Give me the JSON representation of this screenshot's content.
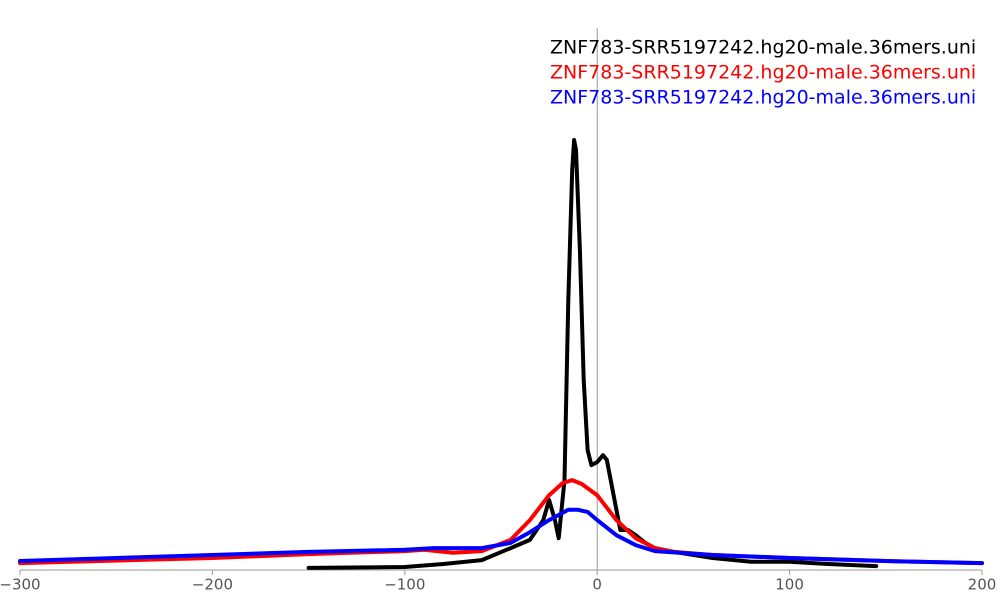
{
  "chart_data": {
    "type": "line",
    "xlim": [
      -300,
      200
    ],
    "ylim": [
      0,
      100
    ],
    "xticks": [
      {
        "value": -300,
        "label": "−300"
      },
      {
        "value": -200,
        "label": "−200"
      },
      {
        "value": -100,
        "label": "−100"
      },
      0,
      100,
      200
    ],
    "series": [
      {
        "name": "ZNF783-SRR5197242.hg20-male.36mers.uni",
        "color": "#000000",
        "x": [
          -150,
          -100,
          -80,
          -60,
          -45,
          -35,
          -28,
          -25,
          -22,
          -20,
          -17,
          -15,
          -13,
          -12,
          -11,
          -9,
          -7,
          -5,
          -3,
          0,
          3,
          5,
          8,
          12,
          16,
          20,
          25,
          30,
          40,
          60,
          80,
          100,
          120,
          145
        ],
        "values": [
          0.5,
          0.7,
          1.4,
          2.3,
          5.1,
          7.0,
          11.6,
          16.3,
          11.6,
          7.4,
          20.9,
          62.8,
          93.0,
          100,
          97.7,
          74.4,
          44.2,
          27.9,
          24.4,
          25.1,
          26.7,
          25.6,
          18.6,
          9.3,
          9.3,
          8.1,
          6.3,
          5.1,
          4.2,
          2.8,
          1.9,
          1.9,
          1.4,
          0.9
        ]
      },
      {
        "name": "ZNF783-SRR5197242.hg20-male.36mers.uni",
        "color": "#ff0000",
        "x": [
          -300,
          -200,
          -150,
          -100,
          -90,
          -75,
          -60,
          -45,
          -35,
          -25,
          -18,
          -13,
          -8,
          0,
          10,
          20,
          30,
          40,
          60,
          100,
          150,
          200
        ],
        "values": [
          1.6,
          2.8,
          3.7,
          4.4,
          4.7,
          4.0,
          4.4,
          7.0,
          11.6,
          17.4,
          20.2,
          20.9,
          20.0,
          17.4,
          11.6,
          7.4,
          5.1,
          4.2,
          3.5,
          2.8,
          2.1,
          1.6
        ]
      },
      {
        "name": "ZNF783-SRR5197242.hg20-male.36mers.uni",
        "color": "#0000ff",
        "x": [
          -300,
          -250,
          -200,
          -150,
          -100,
          -85,
          -60,
          -45,
          -35,
          -25,
          -15,
          -10,
          -5,
          0,
          10,
          20,
          30,
          60,
          100,
          150,
          200
        ],
        "values": [
          2.1,
          2.8,
          3.5,
          4.2,
          4.7,
          5.1,
          5.1,
          6.3,
          8.8,
          11.6,
          14.0,
          14.0,
          13.5,
          11.6,
          8.1,
          5.8,
          4.4,
          3.5,
          2.8,
          2.1,
          1.6
        ]
      }
    ]
  }
}
